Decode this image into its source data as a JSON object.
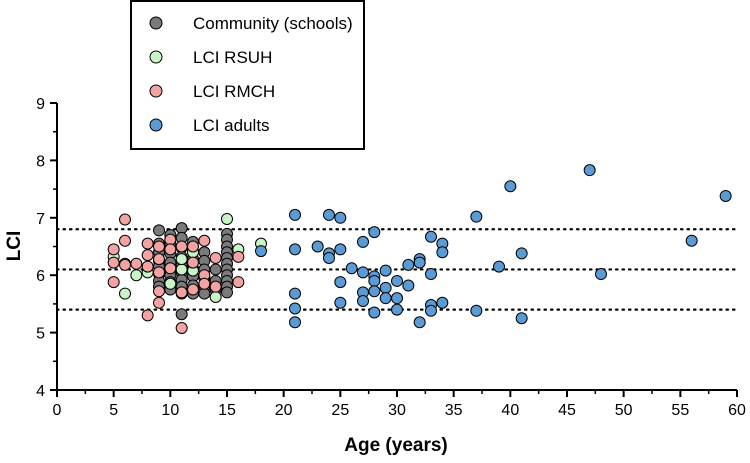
{
  "chart_data": {
    "type": "scatter",
    "xlabel": "Age (years)",
    "ylabel": "LCI",
    "xlim": [
      0,
      60
    ],
    "ylim": [
      4,
      9
    ],
    "xticks": [
      "0",
      "5",
      "10",
      "15",
      "20",
      "25",
      "30",
      "35",
      "40",
      "45",
      "50",
      "55",
      "60"
    ],
    "yticks": [
      "4",
      "5",
      "6",
      "7",
      "8",
      "9"
    ],
    "reference_lines": [
      5.4,
      6.1,
      6.8
    ],
    "legend_position": "top-left",
    "series": [
      {
        "name": "Community (schools)",
        "color": "#7a7a7a",
        "points": [
          [
            9,
            6.78
          ],
          [
            9,
            6.55
          ],
          [
            9,
            6.4
          ],
          [
            9,
            6.25
          ],
          [
            9,
            6.15
          ],
          [
            9,
            6.02
          ],
          [
            9,
            5.9
          ],
          [
            9,
            5.8
          ],
          [
            10,
            6.7
          ],
          [
            10,
            6.55
          ],
          [
            10,
            6.38
          ],
          [
            10,
            6.22
          ],
          [
            10,
            6.1
          ],
          [
            10,
            6.0
          ],
          [
            10,
            5.88
          ],
          [
            10,
            5.75
          ],
          [
            11,
            6.82
          ],
          [
            11,
            6.65
          ],
          [
            11,
            6.48
          ],
          [
            11,
            6.32
          ],
          [
            11,
            6.18
          ],
          [
            11,
            6.05
          ],
          [
            11,
            5.92
          ],
          [
            11,
            5.8
          ],
          [
            11,
            5.68
          ],
          [
            11,
            5.32
          ],
          [
            12,
            6.58
          ],
          [
            12,
            6.42
          ],
          [
            12,
            6.28
          ],
          [
            12,
            6.12
          ],
          [
            12,
            5.98
          ],
          [
            12,
            5.82
          ],
          [
            12,
            5.68
          ],
          [
            13,
            6.4
          ],
          [
            13,
            6.25
          ],
          [
            13,
            6.1
          ],
          [
            13,
            5.95
          ],
          [
            13,
            5.8
          ],
          [
            13,
            5.68
          ],
          [
            14,
            6.1
          ],
          [
            14,
            5.9
          ],
          [
            14,
            5.75
          ],
          [
            15,
            6.72
          ],
          [
            15,
            6.62
          ],
          [
            15,
            6.5
          ],
          [
            15,
            6.4
          ],
          [
            15,
            6.3
          ],
          [
            15,
            6.2
          ],
          [
            15,
            6.1
          ],
          [
            15,
            6.0
          ],
          [
            15,
            5.9
          ],
          [
            15,
            5.8
          ],
          [
            15,
            5.7
          ]
        ]
      },
      {
        "name": "LCI RSUH",
        "color": "#c8f5c8",
        "points": [
          [
            5,
            6.32
          ],
          [
            6,
            6.2
          ],
          [
            6,
            5.68
          ],
          [
            7,
            6.0
          ],
          [
            8,
            6.05
          ],
          [
            10,
            5.85
          ],
          [
            11,
            6.1
          ],
          [
            11,
            6.28
          ],
          [
            12,
            6.08
          ],
          [
            12,
            6.4
          ],
          [
            14,
            5.62
          ],
          [
            15,
            6.98
          ],
          [
            16,
            6.45
          ],
          [
            18,
            6.55
          ]
        ]
      },
      {
        "name": "LCI RMCH",
        "color": "#f4a3a3",
        "points": [
          [
            5,
            6.45
          ],
          [
            5,
            6.22
          ],
          [
            5,
            5.88
          ],
          [
            6,
            6.97
          ],
          [
            6,
            6.6
          ],
          [
            6,
            6.18
          ],
          [
            7,
            6.2
          ],
          [
            8,
            6.55
          ],
          [
            8,
            6.35
          ],
          [
            8,
            6.15
          ],
          [
            8,
            5.3
          ],
          [
            9,
            6.5
          ],
          [
            9,
            6.28
          ],
          [
            9,
            6.05
          ],
          [
            9,
            5.72
          ],
          [
            9,
            5.52
          ],
          [
            10,
            6.62
          ],
          [
            10,
            6.45
          ],
          [
            10,
            6.12
          ],
          [
            11,
            6.5
          ],
          [
            11,
            5.7
          ],
          [
            11,
            5.08
          ],
          [
            12,
            6.5
          ],
          [
            12,
            6.22
          ],
          [
            12,
            5.75
          ],
          [
            13,
            6.6
          ],
          [
            13,
            6.0
          ],
          [
            13,
            5.85
          ],
          [
            14,
            6.3
          ],
          [
            14,
            5.8
          ],
          [
            16,
            6.32
          ],
          [
            16,
            5.88
          ]
        ]
      },
      {
        "name": "LCI adults",
        "color": "#5b9bd5",
        "points": [
          [
            18,
            6.42
          ],
          [
            21,
            7.05
          ],
          [
            21,
            6.45
          ],
          [
            21,
            5.68
          ],
          [
            21,
            5.42
          ],
          [
            21,
            5.18
          ],
          [
            23,
            6.5
          ],
          [
            24,
            7.05
          ],
          [
            24,
            6.38
          ],
          [
            24,
            6.3
          ],
          [
            25,
            7.0
          ],
          [
            25,
            6.45
          ],
          [
            25,
            5.88
          ],
          [
            25,
            5.52
          ],
          [
            26,
            6.12
          ],
          [
            27,
            6.58
          ],
          [
            27,
            6.05
          ],
          [
            27,
            5.7
          ],
          [
            27,
            5.55
          ],
          [
            28,
            6.75
          ],
          [
            28,
            5.98
          ],
          [
            28,
            5.9
          ],
          [
            28,
            5.72
          ],
          [
            28,
            5.35
          ],
          [
            29,
            6.08
          ],
          [
            29,
            5.78
          ],
          [
            29,
            5.6
          ],
          [
            30,
            5.9
          ],
          [
            30,
            5.6
          ],
          [
            30,
            5.4
          ],
          [
            31,
            6.18
          ],
          [
            31,
            5.82
          ],
          [
            32,
            6.28
          ],
          [
            32,
            6.22
          ],
          [
            32,
            5.18
          ],
          [
            33,
            6.67
          ],
          [
            33,
            6.02
          ],
          [
            33,
            5.48
          ],
          [
            33,
            5.38
          ],
          [
            34,
            6.55
          ],
          [
            34,
            6.4
          ],
          [
            34,
            5.52
          ],
          [
            37,
            7.02
          ],
          [
            37,
            5.38
          ],
          [
            39,
            6.15
          ],
          [
            40,
            7.55
          ],
          [
            41,
            6.38
          ],
          [
            41,
            5.25
          ],
          [
            47,
            7.83
          ],
          [
            48,
            6.02
          ],
          [
            56,
            6.6
          ],
          [
            59,
            7.38
          ]
        ]
      }
    ]
  }
}
